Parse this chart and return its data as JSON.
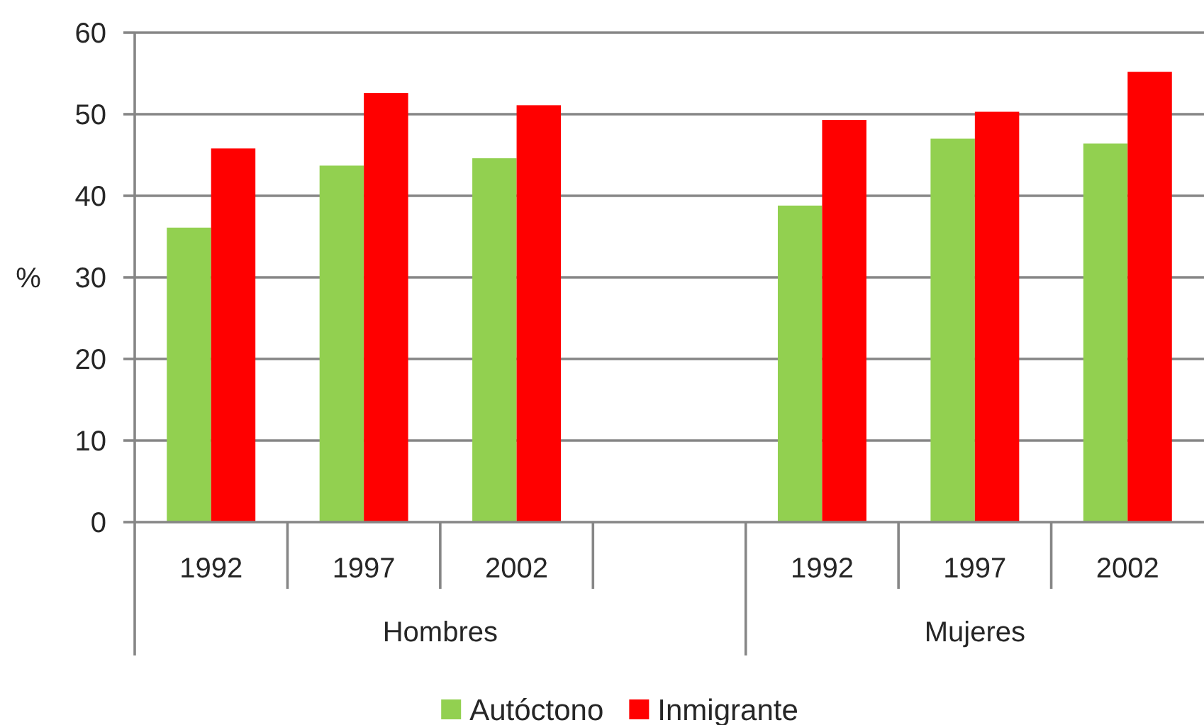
{
  "chart_data": {
    "type": "bar",
    "ylabel": "%",
    "categories": [
      "1992",
      "1997",
      "2002",
      null,
      "1992",
      "1997",
      "2002"
    ],
    "series": [
      {
        "name": "Autóctono",
        "color": "#92d050",
        "values": [
          36.1,
          43.7,
          44.6,
          null,
          38.8,
          47.0,
          46.4
        ]
      },
      {
        "name": "Inmigrante",
        "color": "#ff0000",
        "values": [
          45.8,
          52.6,
          51.1,
          null,
          49.3,
          50.3,
          55.2
        ]
      }
    ],
    "ylim": [
      0,
      60
    ],
    "yticks": [
      0,
      10,
      20,
      30,
      40,
      50,
      60
    ],
    "grid": "y",
    "legend": "bottom",
    "annotations": [
      "Hombres",
      "Mujeres"
    ]
  }
}
